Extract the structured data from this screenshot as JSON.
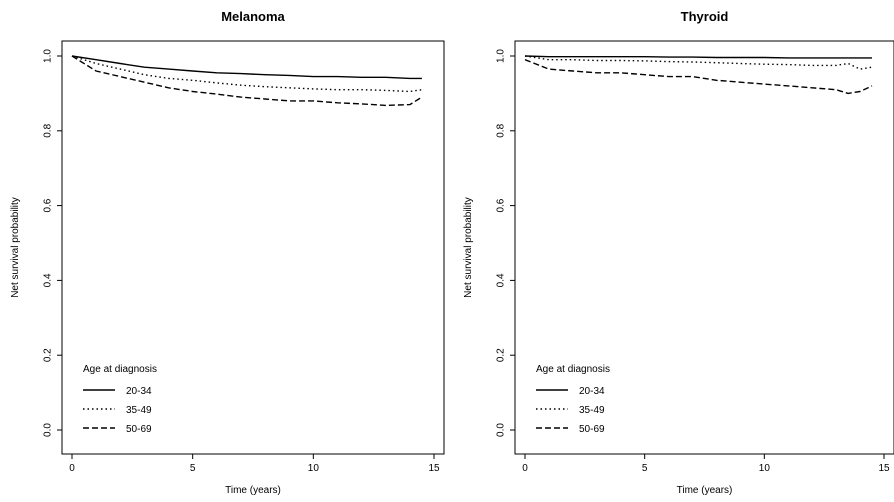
{
  "chart_data": [
    {
      "type": "line",
      "title": "Melanoma",
      "xlabel": "Time (years)",
      "ylabel": "Net survival probability",
      "xlim": [
        0,
        15
      ],
      "ylim": [
        0.0,
        1.0
      ],
      "x_ticks": [
        "0",
        "5",
        "10",
        "15"
      ],
      "y_ticks": [
        "0.0",
        "0.2",
        "0.4",
        "0.6",
        "0.8",
        "1.0"
      ],
      "grid": false,
      "legend": {
        "title": "Age at diagnosis",
        "placement": "bottom-left"
      },
      "series": [
        {
          "name": "20-34",
          "style": "solid",
          "x": [
            0,
            1,
            2,
            3,
            4,
            5,
            6,
            7,
            8,
            9,
            10,
            11,
            12,
            13,
            14,
            14.5
          ],
          "y": [
            1.0,
            0.99,
            0.98,
            0.97,
            0.965,
            0.96,
            0.955,
            0.953,
            0.95,
            0.948,
            0.945,
            0.945,
            0.943,
            0.943,
            0.94,
            0.94
          ]
        },
        {
          "name": "35-49",
          "style": "dotted",
          "x": [
            0,
            1,
            2,
            3,
            4,
            5,
            6,
            7,
            8,
            9,
            10,
            11,
            12,
            13,
            14,
            14.5
          ],
          "y": [
            1.0,
            0.98,
            0.965,
            0.95,
            0.94,
            0.935,
            0.928,
            0.922,
            0.918,
            0.915,
            0.912,
            0.91,
            0.91,
            0.908,
            0.905,
            0.91
          ]
        },
        {
          "name": "50-69",
          "style": "dashed",
          "x": [
            0,
            1,
            2,
            3,
            4,
            5,
            6,
            7,
            8,
            9,
            10,
            11,
            12,
            13,
            14,
            14.5
          ],
          "y": [
            1.0,
            0.96,
            0.945,
            0.93,
            0.915,
            0.905,
            0.898,
            0.89,
            0.885,
            0.88,
            0.88,
            0.875,
            0.872,
            0.868,
            0.87,
            0.89
          ]
        }
      ]
    },
    {
      "type": "line",
      "title": "Thyroid",
      "xlabel": "Time (years)",
      "ylabel": "Net survival probability",
      "xlim": [
        0,
        15
      ],
      "ylim": [
        0.0,
        1.0
      ],
      "x_ticks": [
        "0",
        "5",
        "10",
        "15"
      ],
      "y_ticks": [
        "0.0",
        "0.2",
        "0.4",
        "0.6",
        "0.8",
        "1.0"
      ],
      "grid": false,
      "legend": {
        "title": "Age at diagnosis",
        "placement": "bottom-left"
      },
      "series": [
        {
          "name": "20-34",
          "style": "solid",
          "x": [
            0,
            1,
            2,
            3,
            4,
            5,
            6,
            7,
            8,
            9,
            10,
            11,
            12,
            13,
            14,
            14.5
          ],
          "y": [
            1.0,
            0.998,
            0.998,
            0.998,
            0.998,
            0.998,
            0.997,
            0.997,
            0.996,
            0.996,
            0.996,
            0.995,
            0.995,
            0.995,
            0.995,
            0.995
          ]
        },
        {
          "name": "35-49",
          "style": "dotted",
          "x": [
            0,
            1,
            2,
            3,
            4,
            5,
            6,
            7,
            8,
            9,
            10,
            11,
            12,
            13,
            13.5,
            14,
            14.5
          ],
          "y": [
            1.0,
            0.99,
            0.99,
            0.988,
            0.988,
            0.987,
            0.985,
            0.984,
            0.982,
            0.98,
            0.978,
            0.977,
            0.975,
            0.975,
            0.98,
            0.965,
            0.97
          ]
        },
        {
          "name": "50-69",
          "style": "dashed",
          "x": [
            0,
            1,
            2,
            3,
            4,
            5,
            6,
            7,
            8,
            9,
            10,
            11,
            12,
            13,
            13.5,
            14,
            14.5
          ],
          "y": [
            0.99,
            0.965,
            0.96,
            0.955,
            0.955,
            0.95,
            0.945,
            0.945,
            0.935,
            0.93,
            0.925,
            0.92,
            0.915,
            0.91,
            0.9,
            0.905,
            0.92
          ]
        }
      ]
    }
  ]
}
